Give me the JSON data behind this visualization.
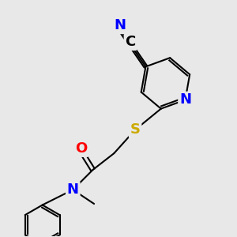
{
  "background_color": "#e8e8e8",
  "atom_colors": {
    "N": "#0000ff",
    "O": "#ff0000",
    "S": "#ccaa00",
    "C": "#000000",
    "H": "#000000"
  },
  "bond_color": "#000000",
  "font_size": 11,
  "label_font_size": 13
}
